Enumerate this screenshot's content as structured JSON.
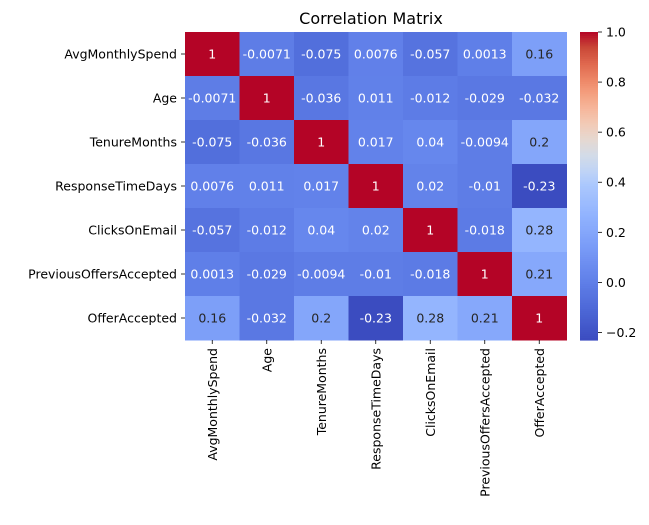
{
  "chart_data": {
    "type": "heatmap",
    "title": "Correlation Matrix",
    "row_labels": [
      "AvgMonthlySpend",
      "Age",
      "TenureMonths",
      "ResponseTimeDays",
      "ClicksOnEmail",
      "PreviousOffersAccepted",
      "OfferAccepted"
    ],
    "col_labels": [
      "AvgMonthlySpend",
      "Age",
      "TenureMonths",
      "ResponseTimeDays",
      "ClicksOnEmail",
      "PreviousOffersAccepted",
      "OfferAccepted"
    ],
    "values": [
      [
        1,
        -0.0071,
        -0.075,
        0.0076,
        -0.057,
        0.0013,
        0.16
      ],
      [
        -0.0071,
        1,
        -0.036,
        0.011,
        -0.012,
        -0.029,
        -0.032
      ],
      [
        -0.075,
        -0.036,
        1,
        0.017,
        0.04,
        -0.0094,
        0.2
      ],
      [
        0.0076,
        0.011,
        0.017,
        1,
        0.02,
        -0.01,
        -0.23
      ],
      [
        -0.057,
        -0.012,
        0.04,
        0.02,
        1,
        -0.018,
        0.28
      ],
      [
        0.0013,
        -0.029,
        -0.0094,
        -0.01,
        -0.018,
        1,
        0.21
      ],
      [
        0.16,
        -0.032,
        0.2,
        -0.23,
        0.28,
        0.21,
        1
      ]
    ],
    "cell_labels": [
      [
        "1",
        "-0.0071",
        "-0.075",
        "0.0076",
        "-0.057",
        "0.0013",
        "0.16"
      ],
      [
        "-0.0071",
        "1",
        "-0.036",
        "0.011",
        "-0.012",
        "-0.029",
        "-0.032"
      ],
      [
        "-0.075",
        "-0.036",
        "1",
        "0.017",
        "0.04",
        "-0.0094",
        "0.2"
      ],
      [
        "0.0076",
        "0.011",
        "0.017",
        "1",
        "0.02",
        "-0.01",
        "-0.23"
      ],
      [
        "-0.057",
        "-0.012",
        "0.04",
        "0.02",
        "1",
        "-0.018",
        "0.28"
      ],
      [
        "0.0013",
        "-0.029",
        "-0.0094",
        "-0.01",
        "-0.018",
        "1",
        "0.21"
      ],
      [
        "0.16",
        "-0.032",
        "0.2",
        "-0.23",
        "0.28",
        "0.21",
        "1"
      ]
    ],
    "colormap": "coolwarm",
    "vmin": -0.23,
    "vmax": 1,
    "colorbar_ticks": [
      -0.2,
      0.0,
      0.2,
      0.4,
      0.6,
      0.8,
      1.0
    ],
    "colorbar_tick_labels": [
      "−0.2",
      "0.0",
      "0.2",
      "0.4",
      "0.6",
      "0.8",
      "1.0"
    ],
    "grid": false
  }
}
